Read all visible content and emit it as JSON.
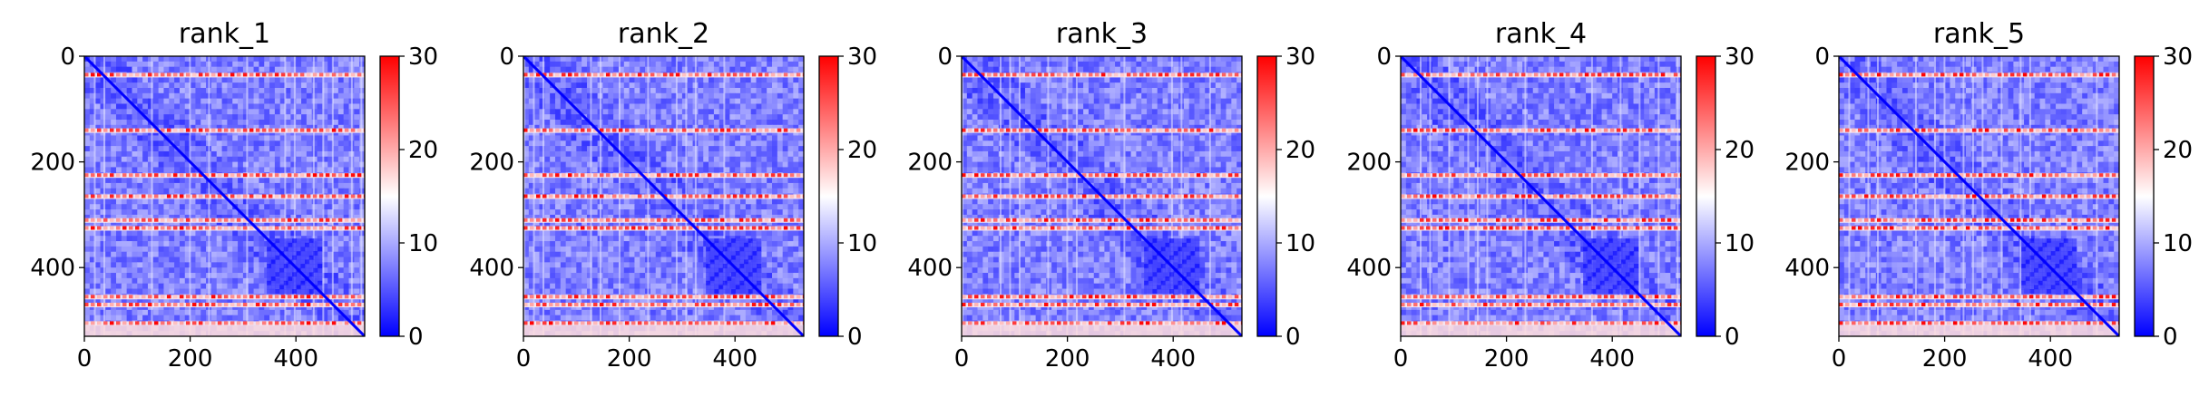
{
  "chart_data": [
    {
      "type": "heatmap",
      "title": "rank_1",
      "xlim": [
        0,
        530
      ],
      "ylim": [
        530,
        0
      ],
      "xticks": [
        0,
        200,
        400
      ],
      "yticks": [
        0,
        200,
        400
      ],
      "colorbar": {
        "min": 0,
        "max": 30,
        "ticks": [
          0,
          10,
          20,
          30
        ],
        "colormap": "bwr"
      },
      "band_rows": [
        35,
        140,
        225,
        265,
        310,
        325,
        455,
        470,
        505
      ],
      "cluster": [
        345,
        445
      ],
      "diagonal": true
    },
    {
      "type": "heatmap",
      "title": "rank_2",
      "xlim": [
        0,
        530
      ],
      "ylim": [
        530,
        0
      ],
      "xticks": [
        0,
        200,
        400
      ],
      "yticks": [
        0,
        200,
        400
      ],
      "colorbar": {
        "min": 0,
        "max": 30,
        "ticks": [
          0,
          10,
          20,
          30
        ],
        "colormap": "bwr"
      },
      "band_rows": [
        35,
        140,
        225,
        265,
        310,
        325,
        455,
        470,
        505
      ],
      "cluster": [
        345,
        445
      ],
      "diagonal": true
    },
    {
      "type": "heatmap",
      "title": "rank_3",
      "xlim": [
        0,
        530
      ],
      "ylim": [
        530,
        0
      ],
      "xticks": [
        0,
        200,
        400
      ],
      "yticks": [
        0,
        200,
        400
      ],
      "colorbar": {
        "min": 0,
        "max": 30,
        "ticks": [
          0,
          10,
          20,
          30
        ],
        "colormap": "bwr"
      },
      "band_rows": [
        35,
        140,
        225,
        265,
        310,
        325,
        455,
        470,
        505
      ],
      "cluster": [
        345,
        445
      ],
      "diagonal": true
    },
    {
      "type": "heatmap",
      "title": "rank_4",
      "xlim": [
        0,
        530
      ],
      "ylim": [
        530,
        0
      ],
      "xticks": [
        0,
        200,
        400
      ],
      "yticks": [
        0,
        200,
        400
      ],
      "colorbar": {
        "min": 0,
        "max": 30,
        "ticks": [
          0,
          10,
          20,
          30
        ],
        "colormap": "bwr"
      },
      "band_rows": [
        35,
        140,
        225,
        265,
        310,
        325,
        455,
        470,
        505
      ],
      "cluster": [
        345,
        445
      ],
      "diagonal": true
    },
    {
      "type": "heatmap",
      "title": "rank_5",
      "xlim": [
        0,
        530
      ],
      "ylim": [
        530,
        0
      ],
      "xticks": [
        0,
        200,
        400
      ],
      "yticks": [
        0,
        200,
        400
      ],
      "colorbar": {
        "min": 0,
        "max": 30,
        "ticks": [
          0,
          10,
          20,
          30
        ],
        "colormap": "bwr"
      },
      "band_rows": [
        35,
        140,
        225,
        265,
        310,
        325,
        455,
        470,
        505
      ],
      "cluster": [
        345,
        445
      ],
      "diagonal": true
    }
  ],
  "colors": {
    "low": "#0000ff",
    "mid": "#ffffff",
    "high": "#ff0000"
  }
}
